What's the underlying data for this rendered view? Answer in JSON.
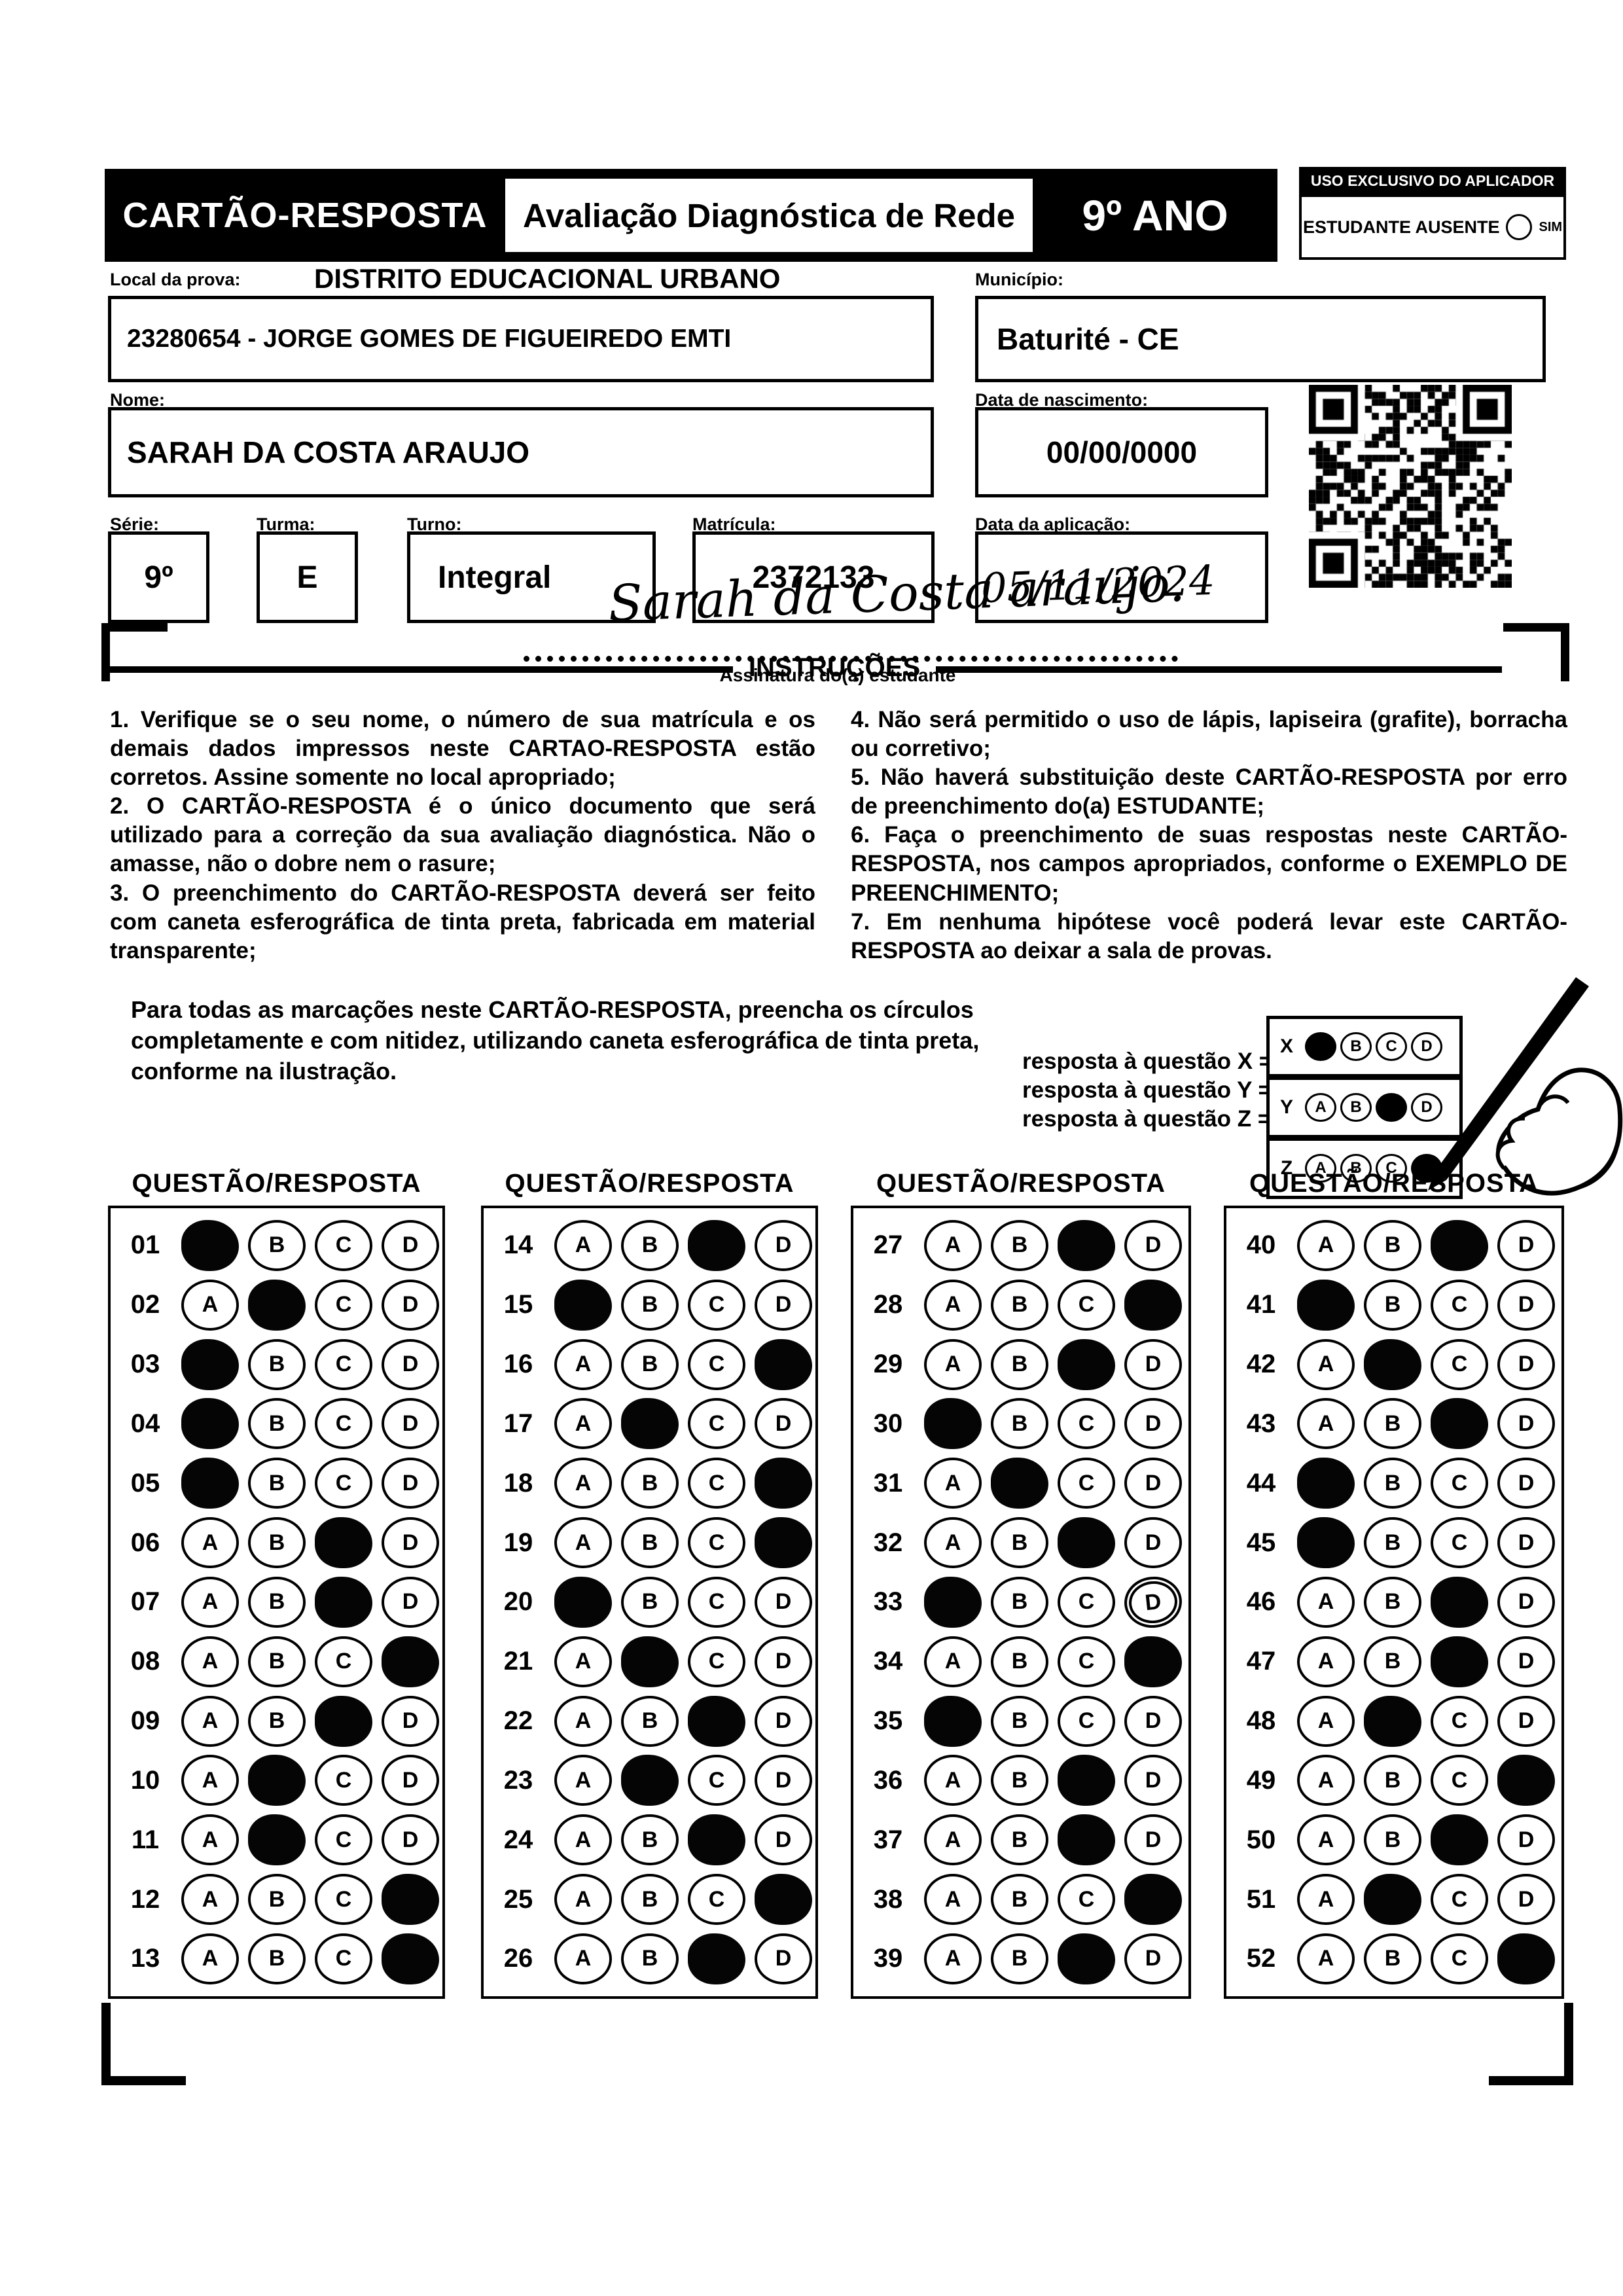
{
  "header": {
    "title": "CARTÃO-RESPOSTA",
    "subtitle": "Avaliação Diagnóstica de Rede",
    "grade": "9º ANO",
    "aplicador": {
      "title": "USO EXCLUSIVO DO APLICADOR",
      "absent_label": "ESTUDANTE AUSENTE",
      "sim_label": "SIM"
    }
  },
  "fields": {
    "local_label": "Local da prova:",
    "local_value": "DISTRITO EDUCACIONAL URBANO",
    "school": "23280654 - JORGE GOMES DE FIGUEIREDO EMTI",
    "municipio_label": "Município:",
    "municipio": "Baturité - CE",
    "nome_label": "Nome:",
    "nome": "SARAH DA COSTA ARAUJO",
    "nascimento_label": "Data de nascimento:",
    "nascimento": "00/00/0000",
    "serie_label": "Série:",
    "serie": "9º",
    "turma_label": "Turma:",
    "turma": "E",
    "turno_label": "Turno:",
    "turno": "Integral",
    "matricula_label": "Matrícula:",
    "matricula": "2372133",
    "aplicacao_label": "Data da aplicação:",
    "aplicacao": "05/11/2024"
  },
  "signature": {
    "text": "Sarah da Costa araujo.",
    "caption": "Assinatura do(a) estudante"
  },
  "instructions": {
    "title": "INSTRUÇÕES",
    "left": [
      "1. Verifique se o seu nome, o número de sua matrícula e os demais dados impressos neste CARTAO-RESPOSTA estão corretos. Assine somente no local apropriado;",
      "2. O CARTÃO-RESPOSTA é o único documento que será utilizado para a correção da sua avaliação diagnóstica. Não o amasse, não o dobre nem o rasure;",
      "3. O preenchimento do CARTÃO-RESPOSTA deverá ser feito com caneta esferográfica de tinta preta, fabricada em material transparente;"
    ],
    "right": [
      "4. Não será permitido o uso de lápis, lapiseira (grafite), borracha ou corretivo;",
      "5. Não haverá substituição deste CARTÃO-RESPOSTA por erro de preenchimento do(a) ESTUDANTE;",
      "6. Faça o preenchimento de suas respostas neste CARTÃO-RESPOSTA, nos campos apropriados, conforme o EXEMPLO DE PREENCHIMENTO;",
      "7. Em nenhuma hipótese você poderá levar este CARTÃO-RESPOSTA ao deixar a sala de provas."
    ],
    "fill_note": "Para todas as marcações neste CARTÃO-RESPOSTA, preencha os círculos completamente e com nitidez, utilizando caneta esferográfica de tinta preta, conforme na ilustração.",
    "example": {
      "captions": [
        "resposta à questão X = A",
        "resposta à questão Y = C",
        "resposta à questão Z = D"
      ],
      "options": [
        "A",
        "B",
        "C",
        "D"
      ],
      "rows": [
        {
          "label": "X",
          "filled": "A"
        },
        {
          "label": "Y",
          "filled": "C"
        },
        {
          "label": "Z",
          "filled": "D"
        }
      ]
    }
  },
  "answers": {
    "column_header": "QUESTÃO/RESPOSTA",
    "options": [
      "A",
      "B",
      "C",
      "D"
    ],
    "columns": [
      {
        "questions": [
          {
            "num": "01",
            "marked": "A"
          },
          {
            "num": "02",
            "marked": "B"
          },
          {
            "num": "03",
            "marked": "A"
          },
          {
            "num": "04",
            "marked": "A"
          },
          {
            "num": "05",
            "marked": "A"
          },
          {
            "num": "06",
            "marked": "C"
          },
          {
            "num": "07",
            "marked": "C"
          },
          {
            "num": "08",
            "marked": "D"
          },
          {
            "num": "09",
            "marked": "C"
          },
          {
            "num": "10",
            "marked": "B"
          },
          {
            "num": "11",
            "marked": "B"
          },
          {
            "num": "12",
            "marked": "D"
          },
          {
            "num": "13",
            "marked": "D"
          }
        ]
      },
      {
        "questions": [
          {
            "num": "14",
            "marked": "C"
          },
          {
            "num": "15",
            "marked": "A"
          },
          {
            "num": "16",
            "marked": "D"
          },
          {
            "num": "17",
            "marked": "B"
          },
          {
            "num": "18",
            "marked": "D"
          },
          {
            "num": "19",
            "marked": "D"
          },
          {
            "num": "20",
            "marked": "A"
          },
          {
            "num": "21",
            "marked": "B"
          },
          {
            "num": "22",
            "marked": "C"
          },
          {
            "num": "23",
            "marked": "B"
          },
          {
            "num": "24",
            "marked": "C"
          },
          {
            "num": "25",
            "marked": "D"
          },
          {
            "num": "26",
            "marked": "C"
          }
        ]
      },
      {
        "questions": [
          {
            "num": "27",
            "marked": "C"
          },
          {
            "num": "28",
            "marked": "D"
          },
          {
            "num": "29",
            "marked": "C"
          },
          {
            "num": "30",
            "marked": "A"
          },
          {
            "num": "31",
            "marked": "B"
          },
          {
            "num": "32",
            "marked": "C"
          },
          {
            "num": "33",
            "marked": "A",
            "scribble": "D"
          },
          {
            "num": "34",
            "marked": "D"
          },
          {
            "num": "35",
            "marked": "A"
          },
          {
            "num": "36",
            "marked": "C"
          },
          {
            "num": "37",
            "marked": "C"
          },
          {
            "num": "38",
            "marked": "D"
          },
          {
            "num": "39",
            "marked": "C"
          }
        ]
      },
      {
        "questions": [
          {
            "num": "40",
            "marked": "C"
          },
          {
            "num": "41",
            "marked": "A"
          },
          {
            "num": "42",
            "marked": "B"
          },
          {
            "num": "43",
            "marked": "C"
          },
          {
            "num": "44",
            "marked": "A"
          },
          {
            "num": "45",
            "marked": "A"
          },
          {
            "num": "46",
            "marked": "C"
          },
          {
            "num": "47",
            "marked": "C"
          },
          {
            "num": "48",
            "marked": "B"
          },
          {
            "num": "49",
            "marked": "D"
          },
          {
            "num": "50",
            "marked": "C"
          },
          {
            "num": "51",
            "marked": "B"
          },
          {
            "num": "52",
            "marked": "D"
          }
        ]
      }
    ]
  }
}
